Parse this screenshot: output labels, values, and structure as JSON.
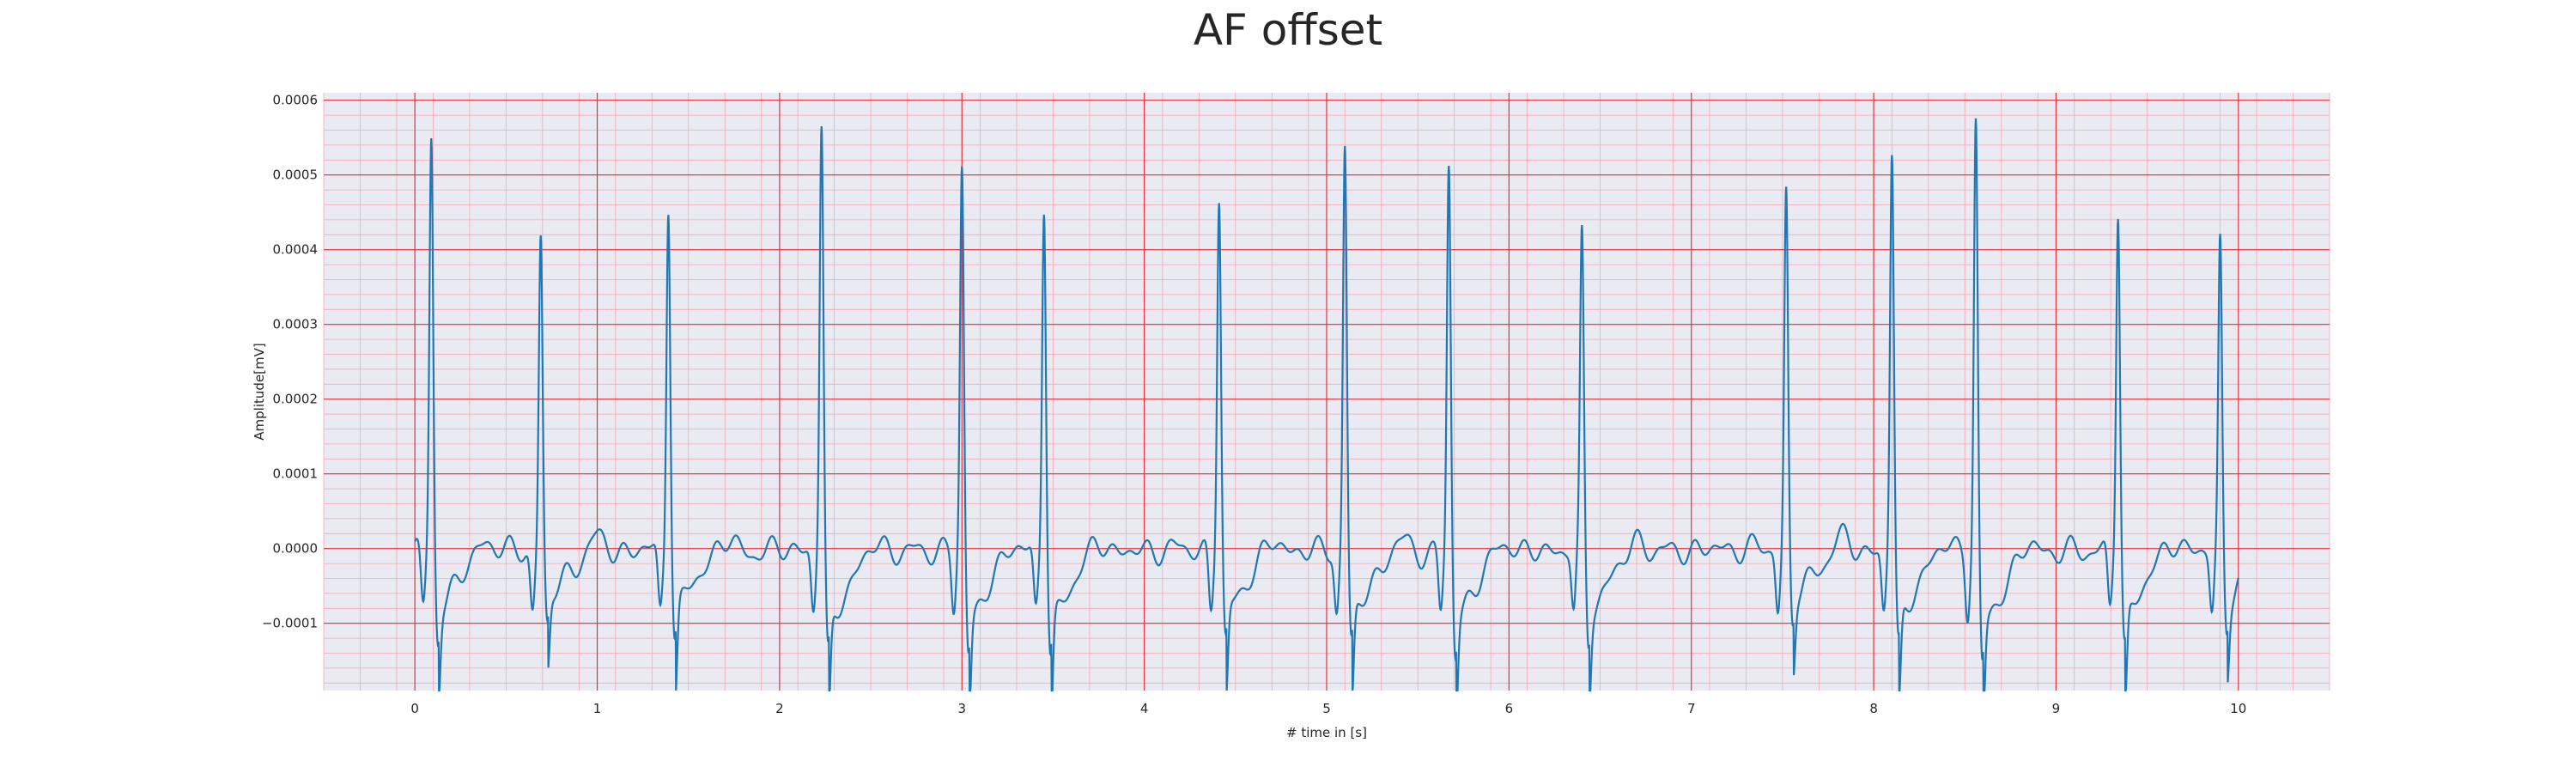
{
  "chart_data": {
    "type": "line",
    "title": "AF offset",
    "xlabel": "# time in [s]",
    "ylabel": "Amplitude[mV]",
    "xlim": [
      -0.5,
      10.5
    ],
    "ylim": [
      -0.00019,
      0.00061
    ],
    "x_ticks": [
      0,
      1,
      2,
      3,
      4,
      5,
      6,
      7,
      8,
      9,
      10
    ],
    "x_tick_labels": [
      "0",
      "1",
      "2",
      "3",
      "4",
      "5",
      "6",
      "7",
      "8",
      "9",
      "10"
    ],
    "y_ticks": [
      -0.0001,
      0.0,
      0.0001,
      0.0002,
      0.0003,
      0.0004,
      0.0005,
      0.0006
    ],
    "y_tick_labels": [
      "−0.0001",
      "0.0000",
      "0.0001",
      "0.0002",
      "0.0003",
      "0.0004",
      "0.0005",
      "0.0006"
    ],
    "grid": true,
    "grid_major_color": "#e8303a",
    "grid_minor_color": "#f4a7b4",
    "plot_background": "#eaeaf2",
    "line_color": "#1f77b4",
    "beats": [
      {
        "t": 0.09,
        "peak": 0.00055,
        "trough": -0.00012
      },
      {
        "t": 0.69,
        "peak": 0.00042,
        "trough": -0.0001
      },
      {
        "t": 1.39,
        "peak": 0.00047,
        "trough": -0.00012
      },
      {
        "t": 2.23,
        "peak": 0.000565,
        "trough": -0.000145
      },
      {
        "t": 3.0,
        "peak": 0.00051,
        "trough": -0.00014
      },
      {
        "t": 3.45,
        "peak": 0.000465,
        "trough": -0.00014
      },
      {
        "t": 4.41,
        "peak": 0.00047,
        "trough": -0.000125
      },
      {
        "t": 5.1,
        "peak": 0.00054,
        "trough": -0.00013
      },
      {
        "t": 5.67,
        "peak": 0.000515,
        "trough": -0.00014
      },
      {
        "t": 6.4,
        "peak": 0.000415,
        "trough": -0.000125
      },
      {
        "t": 7.52,
        "peak": 0.000475,
        "trough": -0.0001
      },
      {
        "t": 8.1,
        "peak": 0.00053,
        "trough": -0.00013
      },
      {
        "t": 8.56,
        "peak": 0.000575,
        "trough": -0.000155
      },
      {
        "t": 9.34,
        "peak": 0.000455,
        "trough": -0.00013
      },
      {
        "t": 9.9,
        "peak": 0.000415,
        "trough": -0.0001
      }
    ]
  }
}
